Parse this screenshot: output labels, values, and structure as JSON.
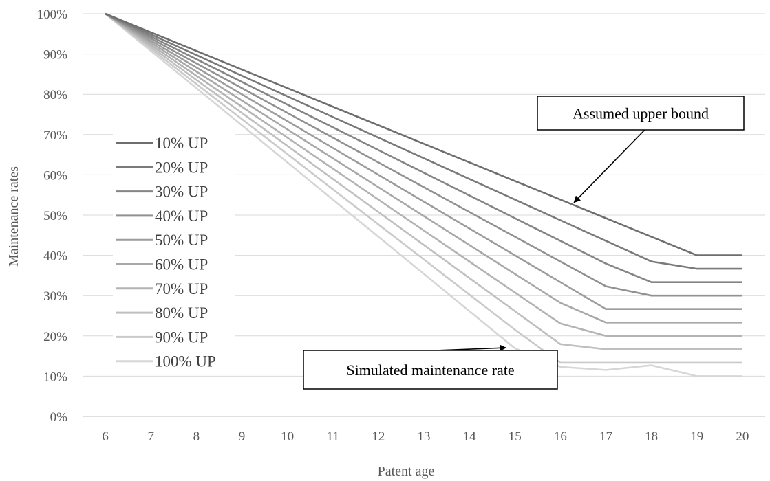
{
  "chart_data": {
    "type": "line",
    "xlabel": "Patent age",
    "ylabel": "Maintenance rates",
    "x": [
      6,
      7,
      8,
      9,
      10,
      11,
      12,
      13,
      14,
      15,
      16,
      17,
      18,
      19,
      20
    ],
    "ylim": [
      0,
      100
    ],
    "yticks": [
      "0%",
      "10%",
      "20%",
      "30%",
      "40%",
      "50%",
      "60%",
      "70%",
      "80%",
      "90%",
      "100%"
    ],
    "grid": "horizontal",
    "legend_position": "left",
    "series": [
      {
        "name": "10% UP",
        "color": "#6e6e6e",
        "values": [
          100,
          95.38,
          90.77,
          86.15,
          81.54,
          76.92,
          72.31,
          67.69,
          63.08,
          58.46,
          53.85,
          49.23,
          44.62,
          40,
          40
        ]
      },
      {
        "name": "20% UP",
        "color": "#7a7a7a",
        "values": [
          100,
          94.87,
          89.74,
          84.62,
          79.49,
          74.36,
          69.23,
          64.1,
          58.97,
          53.85,
          48.72,
          43.59,
          38.46,
          36.67,
          36.67
        ]
      },
      {
        "name": "30% UP",
        "color": "#858585",
        "values": [
          100,
          94.36,
          88.72,
          83.08,
          77.44,
          71.79,
          66.15,
          60.51,
          54.87,
          49.23,
          43.59,
          37.95,
          33.33,
          33.33,
          33.33
        ]
      },
      {
        "name": "40% UP",
        "color": "#919191",
        "values": [
          100,
          93.85,
          87.69,
          81.54,
          75.38,
          69.23,
          63.08,
          56.92,
          50.77,
          44.62,
          38.46,
          32.31,
          30,
          30,
          30
        ]
      },
      {
        "name": "50% UP",
        "color": "#9c9c9c",
        "values": [
          100,
          93.33,
          86.67,
          80,
          73.33,
          66.67,
          60,
          53.33,
          46.67,
          40,
          33.33,
          26.67,
          26.67,
          26.67,
          26.67
        ]
      },
      {
        "name": "60% UP",
        "color": "#a8a8a8",
        "values": [
          100,
          92.82,
          85.64,
          78.46,
          71.28,
          64.1,
          56.92,
          49.74,
          42.56,
          35.38,
          28.21,
          23.33,
          23.33,
          23.33,
          23.33
        ]
      },
      {
        "name": "70% UP",
        "color": "#b3b3b3",
        "values": [
          100,
          92.31,
          84.62,
          76.92,
          69.23,
          61.54,
          53.85,
          46.15,
          38.46,
          30.77,
          23.08,
          20,
          20,
          20,
          20
        ]
      },
      {
        "name": "80% UP",
        "color": "#bfbfbf",
        "values": [
          100,
          91.79,
          83.59,
          75.38,
          67.18,
          58.97,
          50.77,
          42.56,
          34.36,
          26.15,
          17.95,
          16.67,
          16.67,
          16.67,
          16.67
        ]
      },
      {
        "name": "90% UP",
        "color": "#cacaca",
        "values": [
          100,
          91.28,
          82.56,
          73.85,
          65.13,
          56.41,
          47.69,
          38.97,
          30.26,
          21.54,
          13.33,
          13.33,
          13.33,
          13.33,
          13.33
        ]
      },
      {
        "name": "100% UP",
        "color": "#d6d6d6",
        "values": [
          100,
          90.77,
          81.54,
          72.31,
          63.08,
          53.85,
          44.62,
          35.38,
          26.15,
          16.92,
          12.31,
          11.54,
          12.7,
          10,
          10
        ]
      }
    ],
    "annotations": [
      {
        "text": "Assumed upper bound",
        "points_to": {
          "series": "10% UP",
          "x": 16.3
        }
      },
      {
        "text": "Simulated maintenance rate",
        "points_to": {
          "series": "100% UP",
          "x": 14.8
        }
      }
    ]
  }
}
